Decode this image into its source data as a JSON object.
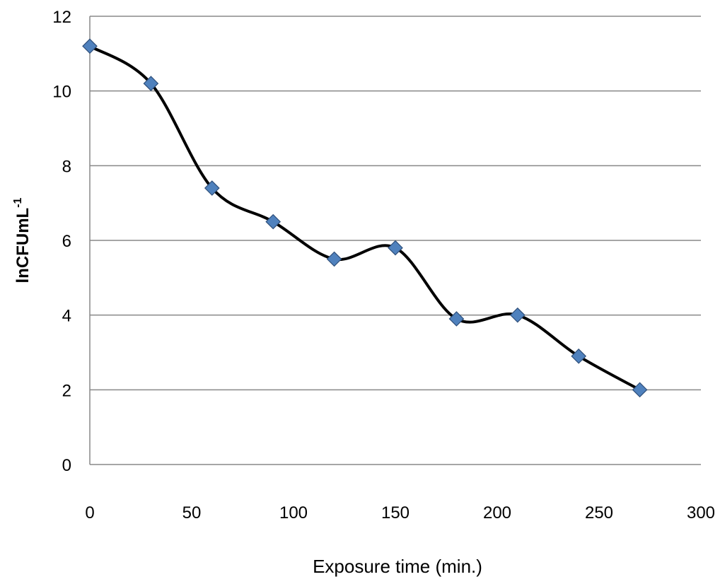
{
  "chart_data": {
    "type": "line",
    "title": "",
    "xlabel": "Exposure time (min.)",
    "ylabel": "lnCFUmL",
    "ylabel_superscript": "-1",
    "xlim": [
      0,
      300
    ],
    "ylim": [
      0,
      12
    ],
    "x_ticks": [
      0,
      50,
      100,
      150,
      200,
      250,
      300
    ],
    "y_ticks": [
      0,
      2,
      4,
      6,
      8,
      10,
      12
    ],
    "grid": "horizontal",
    "legend": "none",
    "smoothed": true,
    "series": [
      {
        "x": [
          0,
          30,
          60,
          90,
          120,
          150,
          180,
          210,
          240,
          270
        ],
        "y": [
          11.2,
          10.2,
          7.4,
          6.5,
          5.5,
          5.8,
          3.9,
          4.0,
          2.9,
          2.0
        ],
        "line_color": "#000000",
        "marker": "diamond",
        "marker_color": "#4f81bd"
      }
    ]
  }
}
